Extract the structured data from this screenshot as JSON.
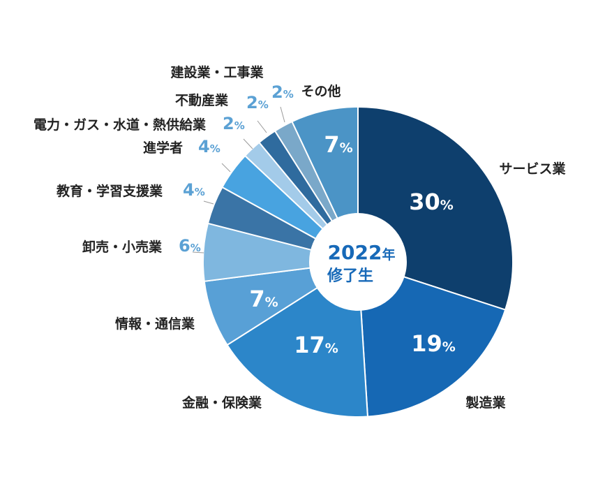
{
  "chart_data": {
    "type": "pie",
    "donut": true,
    "center_label": {
      "year": "2022",
      "year_unit": "年",
      "subtitle": "修了生"
    },
    "unit": "%",
    "slices": [
      {
        "label": "サービス業",
        "value": 30,
        "color": "#0e3f6d"
      },
      {
        "label": "製造業",
        "value": 19,
        "color": "#1668b4"
      },
      {
        "label": "金融・保険業",
        "value": 17,
        "color": "#2c86c9"
      },
      {
        "label": "情報・通信業",
        "value": 7,
        "color": "#58a0d6"
      },
      {
        "label": "卸売・小売業",
        "value": 6,
        "color": "#7fb7df"
      },
      {
        "label": "教育・学習支援業",
        "value": 4,
        "color": "#3a74a6"
      },
      {
        "label": "進学者",
        "value": 4,
        "color": "#48a3e0"
      },
      {
        "label": "電力・ガス・水道・熱供給業",
        "value": 2,
        "color": "#a3cbe9"
      },
      {
        "label": "不動産業",
        "value": 2,
        "color": "#2f6b9e"
      },
      {
        "label": "建設業・工事業",
        "value": 2,
        "color": "#7aa8c9"
      },
      {
        "label": "その他",
        "value": 7,
        "color": "#4b94c6"
      }
    ]
  }
}
